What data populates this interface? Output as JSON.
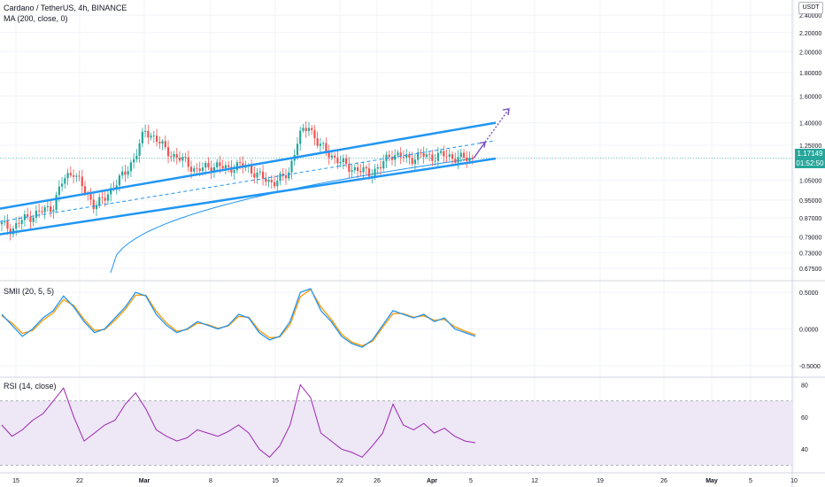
{
  "header": {
    "symbol": "Cardano / TetherUS, 4h, BINANCE",
    "ma_label": "MA (200, close, 0)",
    "quote_unit": "USDT"
  },
  "last_price": {
    "value": "1.17149",
    "countdown": "01:52:50"
  },
  "colors": {
    "up": "#26a69a",
    "down": "#ef5350",
    "channel": "#2196f3",
    "ma": "#2196f3",
    "arrow": "#7e57c2",
    "smi": "#2196f3",
    "smi_signal": "#ff9800",
    "rsi": "#9c27b0",
    "rsi_band": "#ede7f6",
    "grid": "#f0f3fa",
    "axis_text": "#131722"
  },
  "chart_data": [
    {
      "type": "candlestick",
      "title": "Cardano / TetherUS, 4h, BINANCE",
      "y_scale": "log",
      "yticks": [
        "2.40000",
        "2.20000",
        "2.00000",
        "1.80000",
        "1.60000",
        "1.40000",
        "1.25000",
        "1.05000",
        "0.95000",
        "0.87000",
        "0.79000",
        "0.73000",
        "0.67500"
      ],
      "xticks": [
        "15",
        "22",
        "Mar",
        "8",
        "15",
        "22",
        "26",
        "Apr",
        "5",
        "12",
        "19",
        "26",
        "May",
        "5",
        "10"
      ],
      "series_key": "Japanese candlesticks with MA (200, close, 0)",
      "price_path_close": [
        0.84,
        0.82,
        0.86,
        0.88,
        0.9,
        0.92,
        1.05,
        1.1,
        1.0,
        0.93,
        0.95,
        1.03,
        1.08,
        1.18,
        1.34,
        1.3,
        1.22,
        1.18,
        1.15,
        1.1,
        1.12,
        1.13,
        1.11,
        1.13,
        1.12,
        1.08,
        1.04,
        1.05,
        1.08,
        1.3,
        1.38,
        1.25,
        1.2,
        1.15,
        1.12,
        1.1,
        1.09,
        1.12,
        1.2,
        1.18,
        1.17,
        1.19,
        1.18,
        1.19,
        1.18,
        1.17,
        1.17
      ],
      "channel_upper": {
        "from": [
          0.91,
          "15"
        ],
        "to": [
          1.4,
          "Apr 5+"
        ]
      },
      "channel_lower": {
        "from": [
          0.8,
          "15"
        ],
        "to": [
          1.17,
          "Apr 5+"
        ]
      },
      "projection_target": 1.5,
      "last": 1.17149
    },
    {
      "type": "line",
      "title": "SMII (20, 5, 5)",
      "yticks": [
        "0.5000",
        "0.0000",
        "-0.5000"
      ],
      "ylim": [
        -0.55,
        0.55
      ],
      "series": [
        {
          "name": "SMII",
          "values": [
            0.2,
            0.05,
            -0.1,
            0.0,
            0.15,
            0.25,
            0.45,
            0.3,
            0.1,
            -0.05,
            0.0,
            0.15,
            0.3,
            0.5,
            0.45,
            0.2,
            0.05,
            -0.05,
            0.0,
            0.1,
            0.05,
            0.0,
            0.05,
            0.2,
            0.15,
            -0.05,
            -0.15,
            -0.1,
            0.1,
            0.5,
            0.55,
            0.25,
            0.1,
            -0.1,
            -0.2,
            -0.25,
            -0.15,
            0.05,
            0.25,
            0.2,
            0.15,
            0.2,
            0.1,
            0.15,
            0.0,
            -0.05,
            -0.1
          ]
        },
        {
          "name": "Signal",
          "values": [
            0.18,
            0.08,
            -0.06,
            -0.02,
            0.12,
            0.22,
            0.4,
            0.32,
            0.13,
            -0.02,
            -0.01,
            0.12,
            0.27,
            0.46,
            0.46,
            0.24,
            0.08,
            -0.03,
            -0.01,
            0.08,
            0.06,
            0.01,
            0.04,
            0.17,
            0.16,
            -0.02,
            -0.12,
            -0.11,
            0.06,
            0.44,
            0.54,
            0.3,
            0.13,
            -0.07,
            -0.18,
            -0.23,
            -0.17,
            0.02,
            0.21,
            0.21,
            0.16,
            0.18,
            0.12,
            0.13,
            0.03,
            -0.03,
            -0.08
          ]
        }
      ]
    },
    {
      "type": "line",
      "title": "RSI (14, close)",
      "yticks": [
        "80",
        "60",
        "40"
      ],
      "ylim": [
        28,
        82
      ],
      "band": [
        30,
        70
      ],
      "series": [
        {
          "name": "RSI",
          "values": [
            55,
            48,
            52,
            58,
            62,
            70,
            78,
            60,
            45,
            50,
            55,
            58,
            68,
            75,
            65,
            52,
            48,
            45,
            47,
            52,
            50,
            48,
            51,
            55,
            50,
            40,
            35,
            42,
            55,
            80,
            72,
            50,
            45,
            40,
            38,
            35,
            42,
            50,
            68,
            55,
            52,
            56,
            50,
            53,
            48,
            45,
            44
          ]
        }
      ]
    }
  ]
}
